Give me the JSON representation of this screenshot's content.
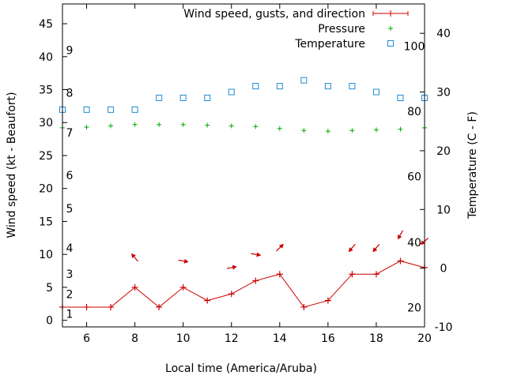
{
  "chart_data": {
    "type": "line",
    "xlabel": "Local time (America/Aruba)",
    "ylabel": "Wind speed (kt - Beaufort)",
    "y2label": "Temperature (C - F)",
    "xlim": [
      5,
      20
    ],
    "ylim": [
      -1,
      48
    ],
    "y2lim": [
      -10,
      45
    ],
    "x_ticks": [
      6,
      8,
      10,
      12,
      14,
      16,
      18,
      20
    ],
    "y_ticks": [
      0,
      5,
      10,
      15,
      20,
      25,
      30,
      35,
      40,
      45
    ],
    "y2_ticks": [
      -10,
      0,
      10,
      20,
      30,
      40
    ],
    "beaufort_labels": [
      {
        "label": "1",
        "y": 1
      },
      {
        "label": "2",
        "y": 4
      },
      {
        "label": "3",
        "y": 7
      },
      {
        "label": "4",
        "y": 11
      },
      {
        "label": "5",
        "y": 17
      },
      {
        "label": "6",
        "y": 22
      },
      {
        "label": "7",
        "y": 28.5
      },
      {
        "label": "8",
        "y": 34.5
      },
      {
        "label": "9",
        "y": 41
      }
    ],
    "fahrenheit_labels": [
      {
        "label": "20",
        "y2": -6.7
      },
      {
        "label": "40",
        "y2": 4.4
      },
      {
        "label": "60",
        "y2": 15.6
      },
      {
        "label": "80",
        "y2": 26.7
      },
      {
        "label": "100",
        "y2": 37.8
      }
    ],
    "series": [
      {
        "name": "Wind speed, gusts, and direction",
        "color": "#cc0000",
        "x": [
          5,
          6,
          7,
          8,
          9,
          10,
          11,
          12,
          13,
          14,
          15,
          16,
          17,
          18,
          19,
          20
        ],
        "y": [
          2,
          2,
          2,
          5,
          2,
          5,
          3,
          4,
          6,
          7,
          2,
          3,
          7,
          7,
          9,
          8
        ]
      },
      {
        "name": "Pressure",
        "color": "#00aa00",
        "x": [
          5,
          6,
          7,
          8,
          9,
          10,
          11,
          12,
          13,
          14,
          15,
          16,
          17,
          18,
          19,
          20
        ],
        "y": [
          29.2,
          29.3,
          29.5,
          29.7,
          29.7,
          29.7,
          29.6,
          29.5,
          29.4,
          29.1,
          28.8,
          28.7,
          28.8,
          28.9,
          29.0,
          29.2
        ]
      },
      {
        "name": "Temperature",
        "color": "#1e8bd2",
        "axis": "y2",
        "x": [
          5,
          6,
          7,
          8,
          9,
          10,
          11,
          12,
          13,
          14,
          15,
          16,
          17,
          18,
          19,
          20
        ],
        "y": [
          27,
          27,
          27,
          27,
          29,
          29,
          29,
          30,
          31,
          31,
          32,
          31,
          31,
          30,
          29,
          29
        ]
      }
    ],
    "wind_arrows": [
      {
        "x": 8,
        "y": 9.5,
        "dir": 320
      },
      {
        "x": 10,
        "y": 9,
        "dir": 100
      },
      {
        "x": 12,
        "y": 8,
        "dir": 80
      },
      {
        "x": 13,
        "y": 10,
        "dir": 100
      },
      {
        "x": 14,
        "y": 11,
        "dir": 45
      },
      {
        "x": 17,
        "y": 11,
        "dir": 220
      },
      {
        "x": 18,
        "y": 11,
        "dir": 220
      },
      {
        "x": 19,
        "y": 13,
        "dir": 210
      },
      {
        "x": 20,
        "y": 12,
        "dir": 230
      }
    ]
  }
}
